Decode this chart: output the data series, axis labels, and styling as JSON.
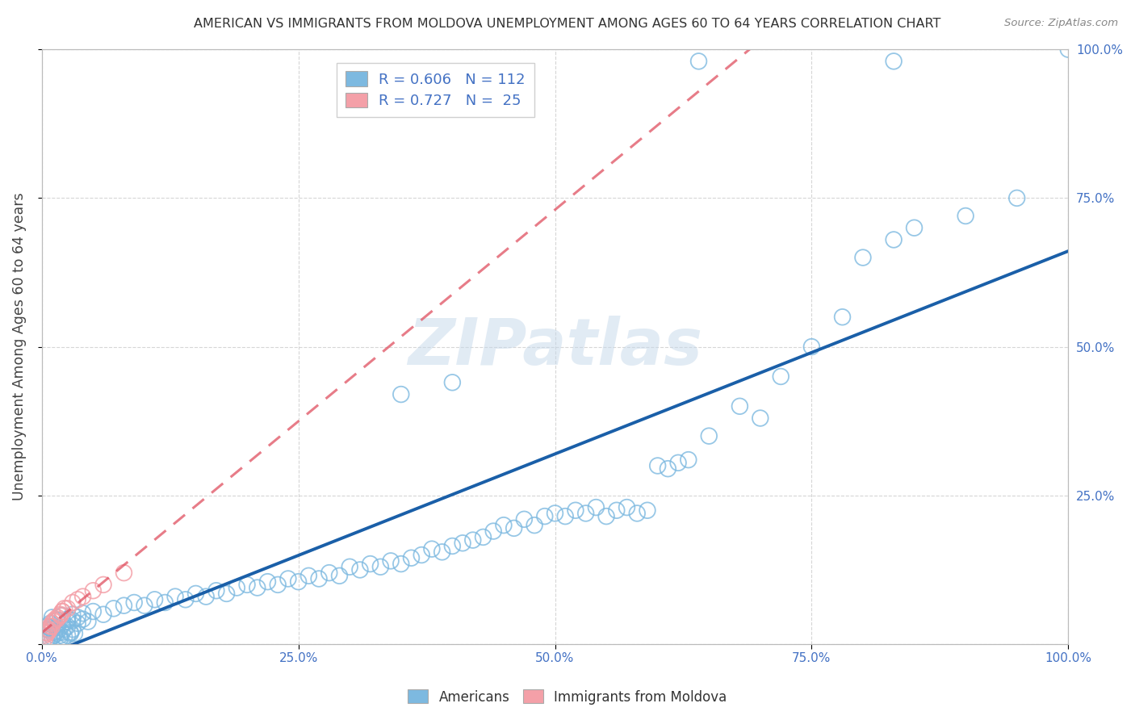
{
  "title": "AMERICAN VS IMMIGRANTS FROM MOLDOVA UNEMPLOYMENT AMONG AGES 60 TO 64 YEARS CORRELATION CHART",
  "source": "Source: ZipAtlas.com",
  "ylabel": "Unemployment Among Ages 60 to 64 years",
  "xlim": [
    0,
    1.0
  ],
  "ylim": [
    0,
    1.0
  ],
  "xtick_labels": [
    "0.0%",
    "25.0%",
    "50.0%",
    "75.0%",
    "100.0%"
  ],
  "xtick_vals": [
    0.0,
    0.25,
    0.5,
    0.75,
    1.0
  ],
  "ytick_labels": [
    "",
    "25.0%",
    "50.0%",
    "75.0%",
    "100.0%"
  ],
  "ytick_vals": [
    0.0,
    0.25,
    0.5,
    0.75,
    1.0
  ],
  "watermark": "ZIPatlas",
  "legend_r_americans": "0.606",
  "legend_n_americans": "112",
  "legend_r_moldova": "0.727",
  "legend_n_moldova": "25",
  "blue_color": "#7db9e0",
  "blue_line_color": "#1a5fa8",
  "pink_color": "#f4a0a8",
  "pink_line_color": "#e05060",
  "americans_x": [
    0.005,
    0.008,
    0.01,
    0.012,
    0.015,
    0.018,
    0.02,
    0.022,
    0.025,
    0.028,
    0.005,
    0.008,
    0.012,
    0.015,
    0.018,
    0.022,
    0.025,
    0.028,
    0.03,
    0.032,
    0.005,
    0.008,
    0.01,
    0.015,
    0.02,
    0.025,
    0.03,
    0.035,
    0.04,
    0.045,
    0.01,
    0.015,
    0.02,
    0.025,
    0.03,
    0.035,
    0.04,
    0.05,
    0.06,
    0.07,
    0.08,
    0.09,
    0.1,
    0.11,
    0.12,
    0.13,
    0.14,
    0.15,
    0.16,
    0.17,
    0.18,
    0.19,
    0.2,
    0.21,
    0.22,
    0.23,
    0.24,
    0.25,
    0.26,
    0.27,
    0.28,
    0.29,
    0.3,
    0.31,
    0.32,
    0.33,
    0.34,
    0.35,
    0.36,
    0.37,
    0.38,
    0.39,
    0.4,
    0.41,
    0.42,
    0.43,
    0.44,
    0.45,
    0.46,
    0.47,
    0.48,
    0.49,
    0.5,
    0.51,
    0.52,
    0.53,
    0.54,
    0.55,
    0.56,
    0.57,
    0.58,
    0.59,
    0.6,
    0.61,
    0.62,
    0.63,
    0.65,
    0.68,
    0.7,
    0.72,
    0.75,
    0.78,
    0.8,
    0.83,
    0.85,
    0.9,
    0.95,
    1.0,
    0.64,
    0.83,
    0.35,
    0.4
  ],
  "americans_y": [
    0.008,
    0.01,
    0.012,
    0.015,
    0.018,
    0.01,
    0.02,
    0.012,
    0.015,
    0.018,
    0.025,
    0.028,
    0.02,
    0.022,
    0.015,
    0.025,
    0.03,
    0.02,
    0.025,
    0.018,
    0.03,
    0.035,
    0.025,
    0.028,
    0.032,
    0.038,
    0.04,
    0.035,
    0.042,
    0.038,
    0.045,
    0.04,
    0.048,
    0.042,
    0.05,
    0.045,
    0.052,
    0.055,
    0.05,
    0.06,
    0.065,
    0.07,
    0.065,
    0.075,
    0.07,
    0.08,
    0.075,
    0.085,
    0.08,
    0.09,
    0.085,
    0.095,
    0.1,
    0.095,
    0.105,
    0.1,
    0.11,
    0.105,
    0.115,
    0.11,
    0.12,
    0.115,
    0.13,
    0.125,
    0.135,
    0.13,
    0.14,
    0.135,
    0.145,
    0.15,
    0.16,
    0.155,
    0.165,
    0.17,
    0.175,
    0.18,
    0.19,
    0.2,
    0.195,
    0.21,
    0.2,
    0.215,
    0.22,
    0.215,
    0.225,
    0.22,
    0.23,
    0.215,
    0.225,
    0.23,
    0.22,
    0.225,
    0.3,
    0.295,
    0.305,
    0.31,
    0.35,
    0.4,
    0.38,
    0.45,
    0.5,
    0.55,
    0.65,
    0.68,
    0.7,
    0.72,
    0.75,
    1.0,
    0.98,
    0.98,
    0.42,
    0.44
  ],
  "moldova_x": [
    0.003,
    0.005,
    0.007,
    0.008,
    0.01,
    0.012,
    0.015,
    0.018,
    0.02,
    0.022,
    0.003,
    0.005,
    0.007,
    0.01,
    0.012,
    0.015,
    0.018,
    0.02,
    0.025,
    0.03,
    0.035,
    0.04,
    0.05,
    0.06,
    0.08
  ],
  "moldova_y": [
    0.015,
    0.02,
    0.025,
    0.03,
    0.035,
    0.04,
    0.045,
    0.05,
    0.055,
    0.06,
    0.01,
    0.018,
    0.022,
    0.03,
    0.038,
    0.042,
    0.048,
    0.055,
    0.06,
    0.07,
    0.075,
    0.08,
    0.09,
    0.1,
    0.12
  ]
}
